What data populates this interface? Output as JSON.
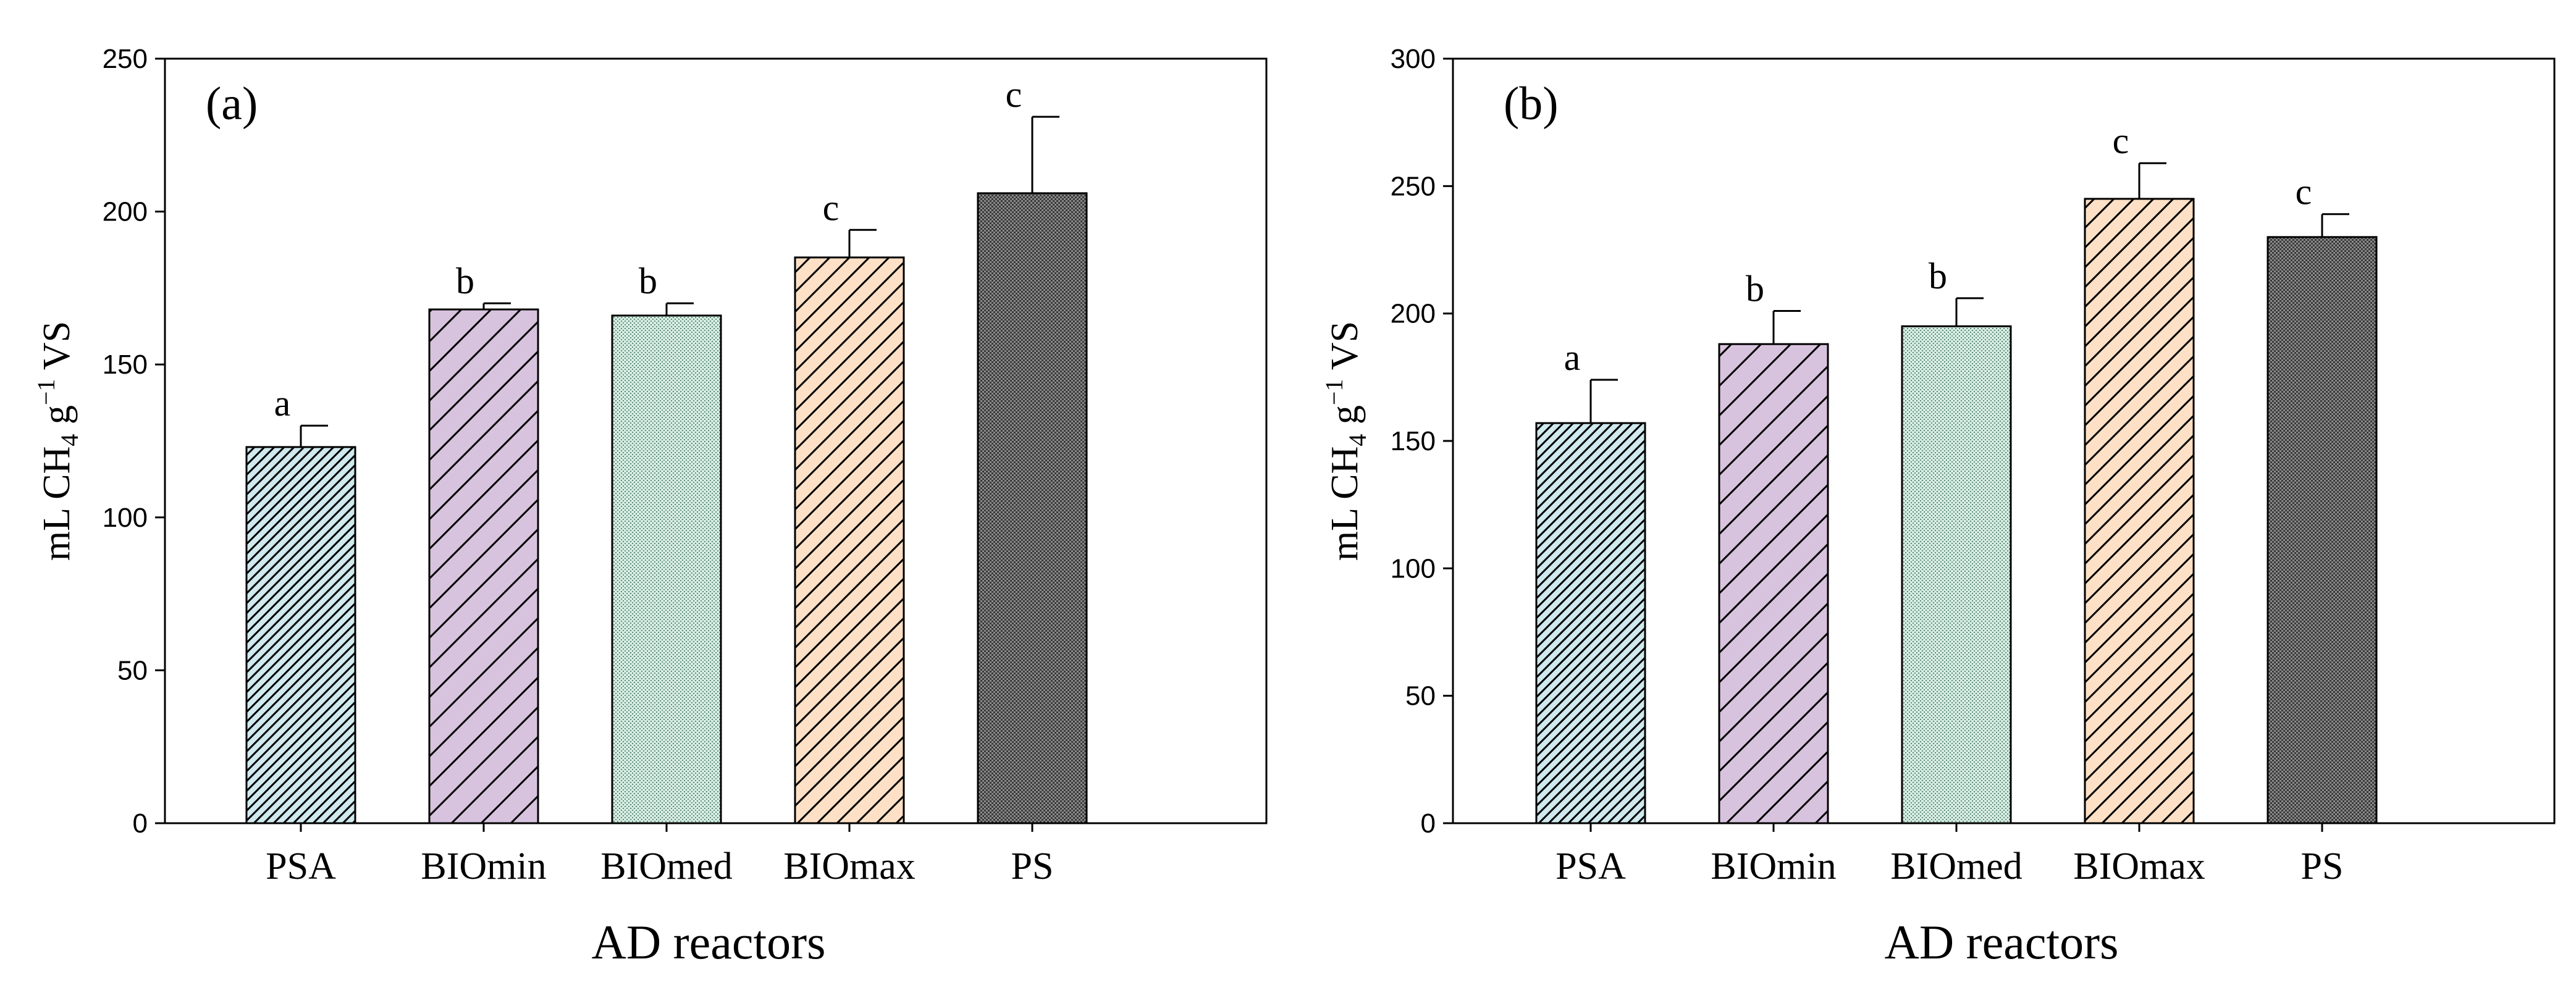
{
  "chart_data": [
    {
      "type": "bar",
      "panel_label": "(a)",
      "categories": [
        "PSA",
        "BIOmin",
        "BIOmed",
        "BIOmax",
        "PS"
      ],
      "values": [
        123,
        168,
        166,
        185,
        206
      ],
      "errors": [
        7,
        2,
        4,
        9,
        25
      ],
      "significance": [
        "a",
        "b",
        "b",
        "c",
        "c"
      ],
      "xlabel": "AD reactors",
      "ylabel": {
        "prefix": "mL CH",
        "sub": "4",
        "middle": " g",
        "sup": "−1",
        "suffix": " VS"
      },
      "ylim": [
        0,
        250
      ],
      "yticks": [
        0,
        50,
        100,
        150,
        200,
        250
      ],
      "grid": false
    },
    {
      "type": "bar",
      "panel_label": "(b)",
      "categories": [
        "PSA",
        "BIOmin",
        "BIOmed",
        "BIOmax",
        "PS"
      ],
      "values": [
        157,
        188,
        195,
        245,
        230
      ],
      "errors": [
        17,
        13,
        11,
        14,
        9
      ],
      "significance": [
        "a",
        "b",
        "b",
        "c",
        "c"
      ],
      "xlabel": "AD reactors",
      "ylabel": {
        "prefix": "mL CH",
        "sub": "4",
        "middle": " g",
        "sup": "−1",
        "suffix": " VS"
      },
      "ylim": [
        0,
        300
      ],
      "yticks": [
        0,
        50,
        100,
        150,
        200,
        250,
        300
      ],
      "grid": false
    }
  ],
  "colors": {
    "PSA": "#cfe9ee",
    "BIOmin": "#d8c3de",
    "BIOmed": "#d6ece2",
    "BIOmax": "#fde0c5",
    "PS": "#7a7a7a"
  }
}
